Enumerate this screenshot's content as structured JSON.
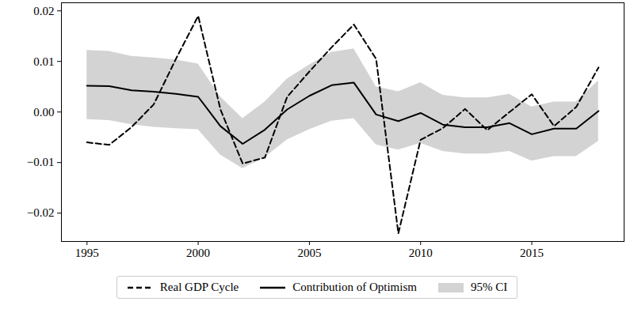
{
  "chart_data": {
    "type": "line",
    "x": [
      1995,
      1996,
      1997,
      1998,
      1999,
      2000,
      2001,
      2002,
      2003,
      2004,
      2005,
      2006,
      2007,
      2008,
      2009,
      2010,
      2011,
      2012,
      2013,
      2014,
      2015,
      2016,
      2017,
      2018
    ],
    "series": [
      {
        "name": "Real GDP Cycle",
        "color": "#000000",
        "line_style": "dashed",
        "values": [
          -0.006,
          -0.0065,
          -0.003,
          0.0015,
          0.0105,
          0.019,
          0.0005,
          -0.0102,
          -0.009,
          0.003,
          0.008,
          0.0128,
          0.0173,
          0.0105,
          -0.024,
          -0.0055,
          -0.0032,
          0.0006,
          -0.0036,
          0.0,
          0.0035,
          -0.0028,
          0.001,
          0.0088
        ]
      },
      {
        "name": "Contribution of Optimism",
        "color": "#000000",
        "line_style": "solid",
        "values": [
          0.0052,
          0.0051,
          0.0043,
          0.004,
          0.0036,
          0.003,
          -0.0028,
          -0.0063,
          -0.0035,
          0.0005,
          0.0032,
          0.0053,
          0.0058,
          -0.0005,
          -0.0018,
          -0.0002,
          -0.0025,
          -0.003,
          -0.003,
          -0.0022,
          -0.0044,
          -0.0033,
          -0.0033,
          0.0002
        ]
      }
    ],
    "ci": {
      "name": "95% CI",
      "color": "#d3d3d3",
      "lower": [
        -0.0015,
        -0.0017,
        -0.0025,
        -0.003,
        -0.0033,
        -0.0035,
        -0.0085,
        -0.0112,
        -0.009,
        -0.0055,
        -0.0035,
        -0.0018,
        -0.0013,
        -0.0065,
        -0.0075,
        -0.0062,
        -0.0078,
        -0.0083,
        -0.0083,
        -0.0078,
        -0.0097,
        -0.0088,
        -0.0088,
        -0.0058
      ],
      "upper": [
        0.0122,
        0.012,
        0.011,
        0.0107,
        0.0103,
        0.0095,
        0.003,
        -0.0013,
        0.002,
        0.0065,
        0.0093,
        0.0118,
        0.0125,
        0.005,
        0.004,
        0.0058,
        0.0033,
        0.0028,
        0.0028,
        0.0035,
        0.001,
        0.002,
        0.002,
        0.0062
      ]
    },
    "xlim": [
      1993.85,
      2019.15
    ],
    "xticks": [
      1995,
      2000,
      2005,
      2010,
      2015
    ],
    "ylim": [
      -0.0256,
      0.0216
    ],
    "yticks": [
      {
        "value": -0.02,
        "label": "−0.02"
      },
      {
        "value": -0.01,
        "label": "−0.01"
      },
      {
        "value": 0,
        "label": "0.00"
      },
      0.01,
      0.02
    ],
    "grid": false,
    "legend": "bottom"
  }
}
